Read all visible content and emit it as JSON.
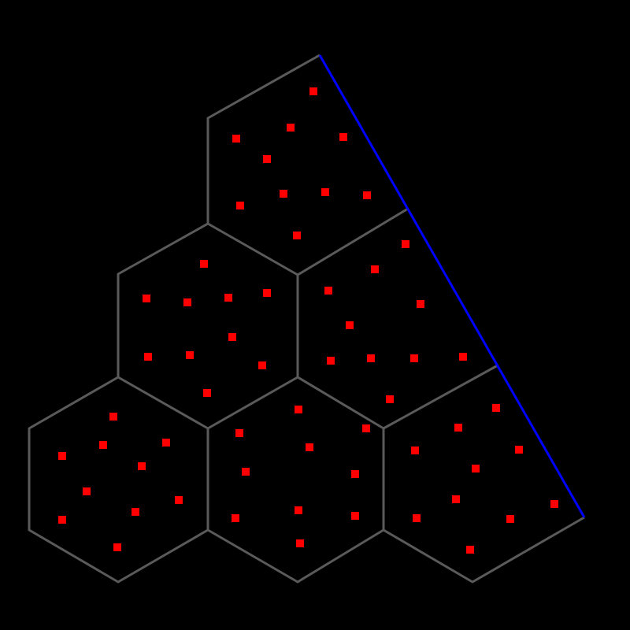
{
  "colors": {
    "background": "#000000",
    "cell_edge": "#5a5a5a",
    "boundary_edge": "#0000ff",
    "point": "#ff0000"
  },
  "diagram": {
    "kind": "hexagonal cell tessellation with sample points"
  }
}
